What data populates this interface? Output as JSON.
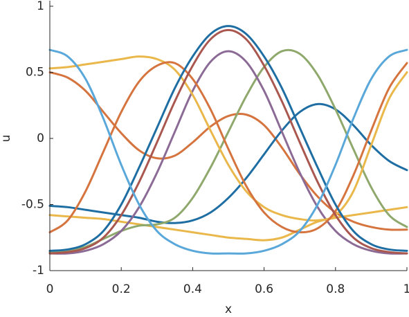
{
  "chart_data": {
    "type": "line",
    "xlabel": "x",
    "ylabel": "u",
    "x": [
      0,
      0.05,
      0.1,
      0.15,
      0.2,
      0.25,
      0.3,
      0.35,
      0.4,
      0.45,
      0.5,
      0.55,
      0.6,
      0.65,
      0.7,
      0.75,
      0.8,
      0.85,
      0.9,
      0.95,
      1
    ],
    "xlim": [
      0,
      1
    ],
    "xticks": [
      0,
      0.2,
      0.4,
      0.6,
      0.8,
      1
    ],
    "ylim": [
      -1,
      1
    ],
    "yticks": [
      -1,
      -0.5,
      0,
      0.5,
      1
    ],
    "series": [
      {
        "color": "#eab74a",
        "values": [
          -0.58,
          -0.59,
          -0.6,
          -0.61,
          -0.63,
          -0.65,
          -0.67,
          -0.69,
          -0.71,
          -0.73,
          -0.75,
          -0.76,
          -0.77,
          -0.75,
          -0.69,
          -0.63,
          -0.6,
          -0.58,
          -0.56,
          -0.54,
          -0.52
        ]
      },
      {
        "color": "#d5743e",
        "values": [
          0.5,
          0.46,
          0.36,
          0.2,
          0.04,
          -0.09,
          -0.15,
          -0.13,
          -0.03,
          0.09,
          0.17,
          0.18,
          0.1,
          -0.07,
          -0.27,
          -0.44,
          -0.56,
          -0.63,
          -0.67,
          -0.69,
          -0.69
        ]
      },
      {
        "color": "#1f6ea3",
        "values": [
          -0.51,
          -0.52,
          -0.54,
          -0.56,
          -0.58,
          -0.6,
          -0.63,
          -0.64,
          -0.62,
          -0.56,
          -0.45,
          -0.3,
          -0.12,
          0.06,
          0.2,
          0.26,
          0.22,
          0.1,
          -0.05,
          -0.17,
          -0.24
        ]
      },
      {
        "color": "#8fa86c",
        "values": [
          -0.86,
          -0.85,
          -0.82,
          -0.76,
          -0.7,
          -0.66,
          -0.65,
          -0.6,
          -0.45,
          -0.22,
          0.05,
          0.32,
          0.54,
          0.66,
          0.64,
          0.48,
          0.22,
          -0.08,
          -0.37,
          -0.58,
          -0.67
        ]
      },
      {
        "color": "#8b6b95",
        "values": [
          -0.87,
          -0.87,
          -0.85,
          -0.8,
          -0.7,
          -0.52,
          -0.26,
          0.05,
          0.36,
          0.58,
          0.66,
          0.58,
          0.36,
          0.05,
          -0.26,
          -0.52,
          -0.7,
          -0.8,
          -0.85,
          -0.87,
          -0.87
        ]
      },
      {
        "color": "#eab74a",
        "values": [
          0.53,
          0.54,
          0.56,
          0.58,
          0.6,
          0.62,
          0.6,
          0.52,
          0.33,
          0.06,
          -0.2,
          -0.4,
          -0.52,
          -0.58,
          -0.61,
          -0.62,
          -0.58,
          -0.4,
          -0.05,
          0.3,
          0.5
        ]
      },
      {
        "color": "#d5743e",
        "values": [
          -0.71,
          -0.62,
          -0.4,
          -0.1,
          0.2,
          0.43,
          0.55,
          0.57,
          0.45,
          0.22,
          -0.08,
          -0.36,
          -0.56,
          -0.67,
          -0.71,
          -0.68,
          -0.55,
          -0.28,
          0.06,
          0.38,
          0.57
        ]
      },
      {
        "color": "#a9574f",
        "values": [
          -0.87,
          -0.86,
          -0.83,
          -0.75,
          -0.58,
          -0.33,
          -0.03,
          0.28,
          0.55,
          0.75,
          0.82,
          0.75,
          0.55,
          0.28,
          -0.03,
          -0.33,
          -0.58,
          -0.75,
          -0.83,
          -0.86,
          -0.87
        ]
      },
      {
        "color": "#1f6ea3",
        "values": [
          -0.85,
          -0.84,
          -0.8,
          -0.7,
          -0.5,
          -0.22,
          0.08,
          0.38,
          0.62,
          0.79,
          0.85,
          0.79,
          0.62,
          0.38,
          0.08,
          -0.22,
          -0.5,
          -0.7,
          -0.8,
          -0.84,
          -0.85
        ]
      },
      {
        "color": "#5aa8da",
        "values": [
          0.67,
          0.62,
          0.45,
          0.15,
          -0.2,
          -0.5,
          -0.7,
          -0.8,
          -0.85,
          -0.87,
          -0.87,
          -0.87,
          -0.85,
          -0.8,
          -0.7,
          -0.5,
          -0.2,
          0.15,
          0.45,
          0.62,
          0.67
        ]
      }
    ]
  }
}
